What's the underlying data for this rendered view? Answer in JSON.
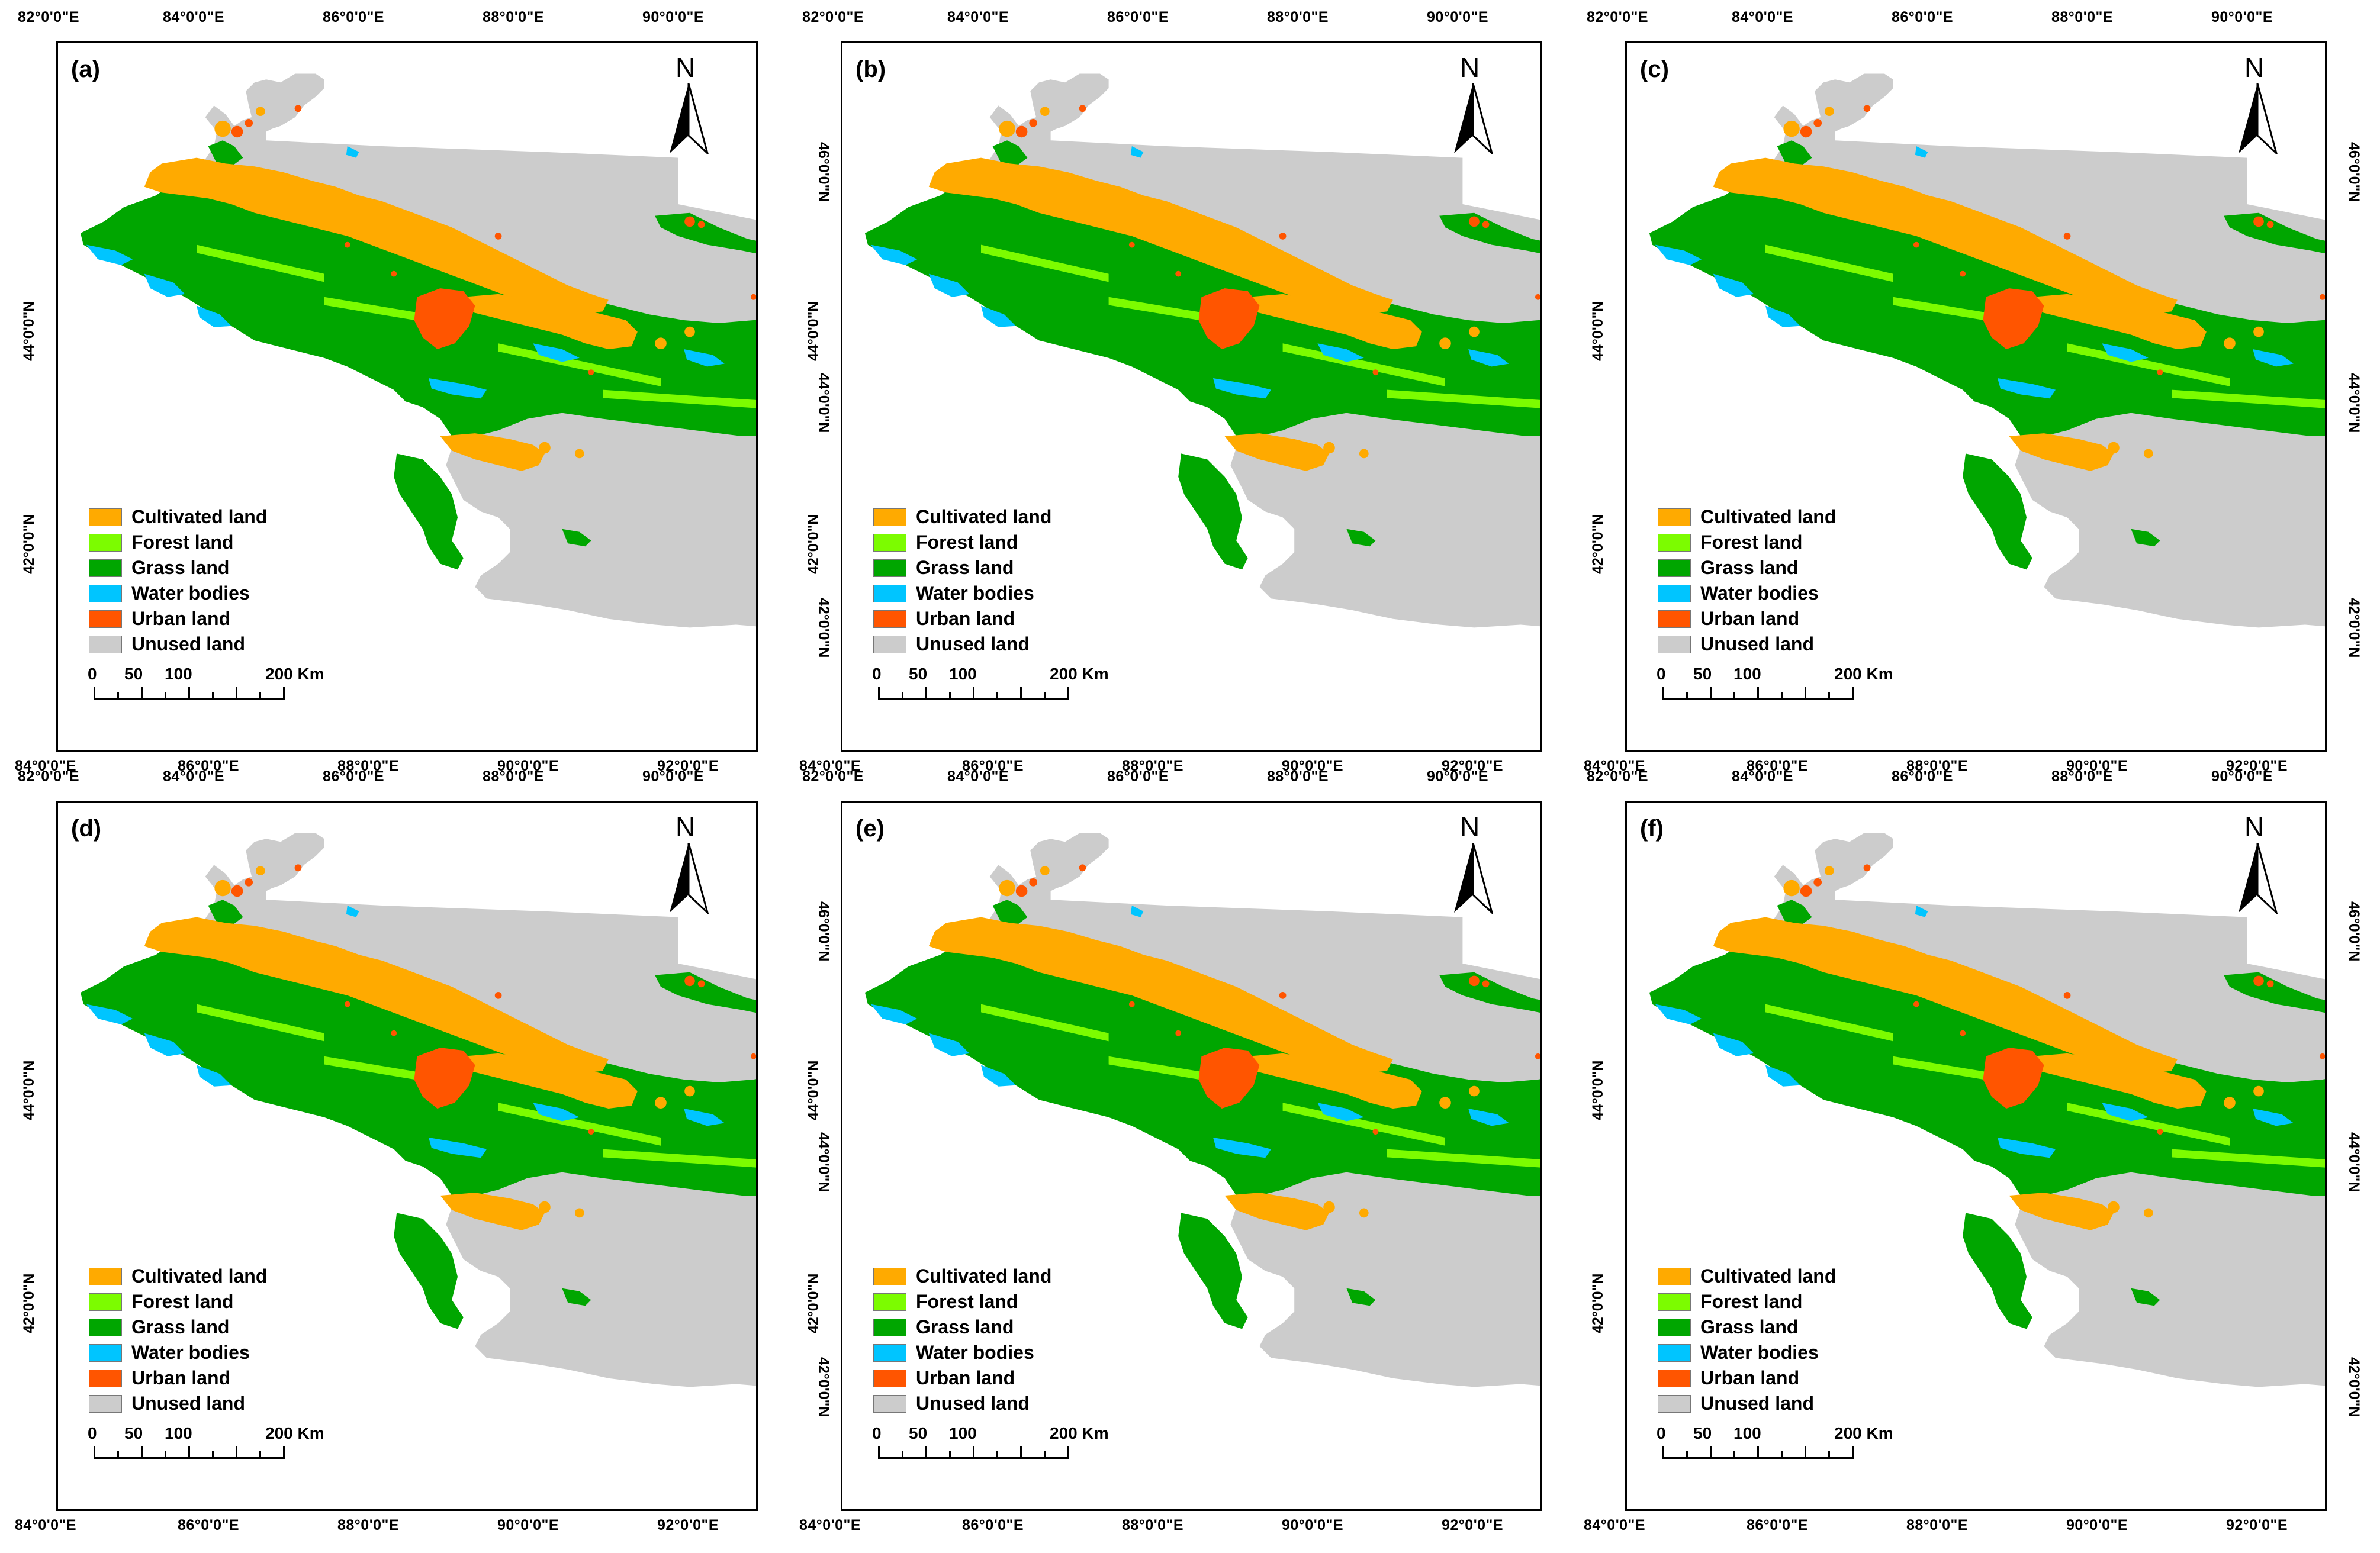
{
  "panels": [
    {
      "label": "(a)"
    },
    {
      "label": "(b)"
    },
    {
      "label": "(c)"
    },
    {
      "label": "(d)"
    },
    {
      "label": "(e)"
    },
    {
      "label": "(f)"
    }
  ],
  "top_lon_labels": [
    "82°0'0\"E",
    "84°0'0\"E",
    "86°0'0\"E",
    "88°0'0\"E",
    "90°0'0\"E"
  ],
  "bottom_lon_labels": [
    "84°0'0\"E",
    "86°0'0\"E",
    "88°0'0\"E",
    "90°0'0\"E",
    "92°0'0\"E"
  ],
  "left_lat_labels": [
    "44°0'0\"N",
    "42°0'0\"N"
  ],
  "right_lat_labels": [
    "46°0'0\"N",
    "44°0'0\"N",
    "42°0'0\"N"
  ],
  "north_arrow": {
    "letter": "N",
    "icon": "north-arrow-icon"
  },
  "legend": [
    {
      "label": "Cultivated land",
      "color": "#FFAA00"
    },
    {
      "label": "Forest land",
      "color": "#7CFC00"
    },
    {
      "label": "Grass land",
      "color": "#00A600"
    },
    {
      "label": "Water bodies",
      "color": "#00C5FF"
    },
    {
      "label": "Urban land",
      "color": "#FF5500"
    },
    {
      "label": "Unused land",
      "color": "#CCCCCC"
    }
  ],
  "scale_bar": {
    "labels": [
      "0",
      "50",
      "100",
      "200 Km"
    ]
  },
  "colors": {
    "frame": "#000000",
    "background": "#FFFFFF",
    "cultivated": "#FFAA00",
    "forest": "#7CFC00",
    "grass": "#00A600",
    "water": "#00C5FF",
    "urban": "#FF5500",
    "unused": "#CCCCCC"
  }
}
